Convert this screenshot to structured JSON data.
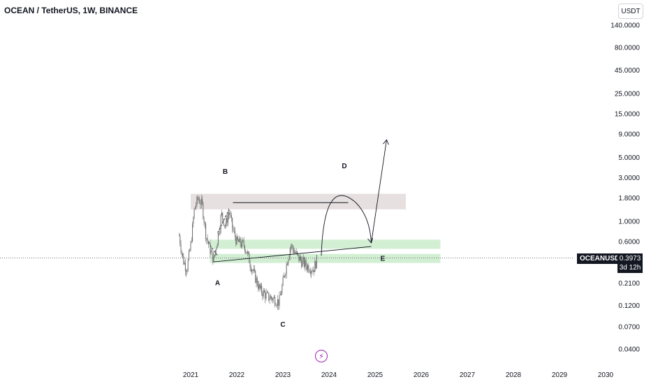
{
  "header": {
    "title": "OCEAN / TetherUS, 1W, BINANCE",
    "currency_button": "USDT"
  },
  "price_tag": {
    "symbol": "OCEANUSDT",
    "last_price": "0.3973",
    "countdown": "3d 12h"
  },
  "chart_data": {
    "type": "candlestick",
    "title": "OCEAN / TetherUS, 1W, BINANCE",
    "y_scale": "log",
    "y_ticks": [
      "140.0000",
      "80.0000",
      "45.0000",
      "25.0000",
      "15.0000",
      "9.0000",
      "5.0000",
      "3.0000",
      "1.8000",
      "1.0000",
      "0.6000",
      "0.3973",
      "0.2100",
      "0.1200",
      "0.0700",
      "0.0400"
    ],
    "y_tick_values": [
      140,
      80,
      45,
      25,
      15,
      9,
      5,
      3,
      1.8,
      1,
      0.6,
      0.3973,
      0.21,
      0.12,
      0.07,
      0.04
    ],
    "x_ticks": [
      "2021",
      "2022",
      "2023",
      "2024",
      "2025",
      "2026",
      "2027",
      "2028",
      "2029",
      "2030"
    ],
    "last_price": 0.3973,
    "price_path": [
      {
        "date": "2020-10",
        "price": 0.7
      },
      {
        "date": "2020-11",
        "price": 0.38
      },
      {
        "date": "2020-12",
        "price": 0.3
      },
      {
        "date": "2021-01",
        "price": 0.55
      },
      {
        "date": "2021-02",
        "price": 1.4
      },
      {
        "date": "2021-03",
        "price": 1.8
      },
      {
        "date": "2021-04",
        "price": 1.5
      },
      {
        "date": "2021-05",
        "price": 0.7
      },
      {
        "date": "2021-06",
        "price": 0.5
      },
      {
        "date": "2021-07",
        "price": 0.38
      },
      {
        "date": "2021-08",
        "price": 0.65
      },
      {
        "date": "2021-09",
        "price": 1.2
      },
      {
        "date": "2021-10",
        "price": 0.9
      },
      {
        "date": "2021-11",
        "price": 1.3
      },
      {
        "date": "2021-12",
        "price": 0.8
      },
      {
        "date": "2022-01",
        "price": 0.6
      },
      {
        "date": "2022-03",
        "price": 0.55
      },
      {
        "date": "2022-05",
        "price": 0.3
      },
      {
        "date": "2022-07",
        "price": 0.18
      },
      {
        "date": "2022-09",
        "price": 0.15
      },
      {
        "date": "2022-11",
        "price": 0.14
      },
      {
        "date": "2022-12",
        "price": 0.13
      },
      {
        "date": "2023-02",
        "price": 0.35
      },
      {
        "date": "2023-03",
        "price": 0.55
      },
      {
        "date": "2023-05",
        "price": 0.4
      },
      {
        "date": "2023-07",
        "price": 0.33
      },
      {
        "date": "2023-09",
        "price": 0.3
      },
      {
        "date": "2023-10",
        "price": 0.4
      }
    ],
    "zones": [
      {
        "name": "resistance",
        "x_from": "2021-01",
        "x_to": "2025-09",
        "y_from": 1.35,
        "y_to": 2.0,
        "color": "#e6e0e0"
      },
      {
        "name": "support-upper",
        "x_from": "2021-06",
        "x_to": "2026-06",
        "y_from": 0.5,
        "y_to": 0.63,
        "color": "#d3efd3"
      },
      {
        "name": "support-lower",
        "x_from": "2021-06",
        "x_to": "2026-06",
        "y_from": 0.35,
        "y_to": 0.44,
        "color": "#d3efd3"
      }
    ],
    "annotations": [
      {
        "label": "A",
        "date": "2021-08",
        "price": 0.2
      },
      {
        "label": "B",
        "date": "2021-10",
        "price": 3.3
      },
      {
        "label": "C",
        "date": "2023-01",
        "price": 0.07
      },
      {
        "label": "D",
        "date": "2024-05",
        "price": 3.8
      },
      {
        "label": "E",
        "date": "2025-03",
        "price": 0.37
      }
    ],
    "colors": {
      "candles": "#6b6b6b",
      "zone_support": "#d3efd3",
      "zone_resistance": "#e6e0e0",
      "brand": "#9c27b0"
    }
  },
  "logo": {
    "icon": "lightning-bolt-icon"
  }
}
